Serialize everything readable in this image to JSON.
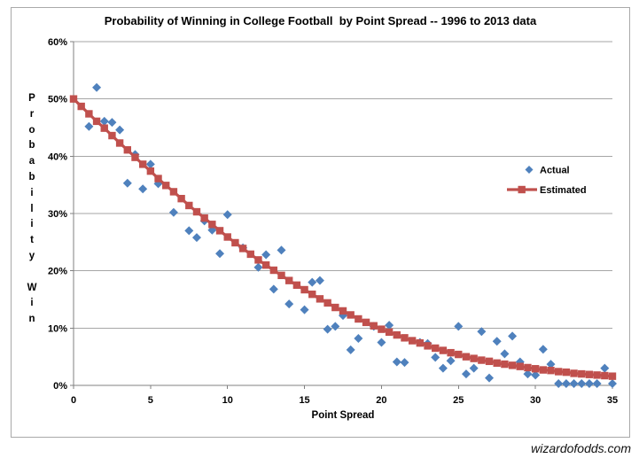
{
  "watermark": "wizardofodds.com",
  "styles": {
    "background": "#FFFFFF",
    "border_color": "#A9A9A9",
    "grid_color": "#A6A6A6",
    "axis_color": "#808080",
    "text_color": "#000000",
    "actual_color": "#4F81BD",
    "estimated_color": "#C0504D"
  },
  "chart_data": {
    "type": "scatter",
    "title": "Probability of Winning in College Football  by Point Spread -- 1996 to 2013 data",
    "xlabel": "Point Spread",
    "ylabel": "Probability Win",
    "xlim": [
      0,
      35
    ],
    "ylim_percent": [
      0,
      60
    ],
    "grid": true,
    "legend_position": "middle-right",
    "x_ticks": [
      {
        "value": 0,
        "label": "0"
      },
      {
        "value": 5,
        "label": "5"
      },
      {
        "value": 10,
        "label": "10"
      },
      {
        "value": 15,
        "label": "15"
      },
      {
        "value": 20,
        "label": "20"
      },
      {
        "value": 25,
        "label": "25"
      },
      {
        "value": 30,
        "label": "30"
      },
      {
        "value": 35,
        "label": "35"
      }
    ],
    "y_ticks": [
      {
        "value": 0,
        "label": "0%"
      },
      {
        "value": 10,
        "label": "10%"
      },
      {
        "value": 20,
        "label": "20%"
      },
      {
        "value": 30,
        "label": "30%"
      },
      {
        "value": 40,
        "label": "40%"
      },
      {
        "value": 50,
        "label": "50%"
      },
      {
        "value": 60,
        "label": "60%"
      }
    ],
    "series": [
      {
        "name": "Actual",
        "marker": "diamond",
        "color": "#4F81BD",
        "points": [
          [
            1,
            45.2
          ],
          [
            1.5,
            52
          ],
          [
            2,
            46.1
          ],
          [
            2.5,
            45.9
          ],
          [
            3,
            44.6
          ],
          [
            3.5,
            35.3
          ],
          [
            4,
            40.3
          ],
          [
            4.5,
            34.3
          ],
          [
            5,
            38.6
          ],
          [
            5.5,
            35.2
          ],
          [
            6.5,
            30.2
          ],
          [
            7.5,
            27
          ],
          [
            8,
            25.8
          ],
          [
            8.5,
            28.7
          ],
          [
            9,
            27.1
          ],
          [
            9.5,
            23
          ],
          [
            10,
            29.8
          ],
          [
            11,
            24
          ],
          [
            12,
            20.6
          ],
          [
            12.5,
            22.8
          ],
          [
            13,
            16.8
          ],
          [
            13.5,
            23.6
          ],
          [
            14,
            14.2
          ],
          [
            15,
            13.2
          ],
          [
            15.5,
            18
          ],
          [
            16,
            18.3
          ],
          [
            16.5,
            9.8
          ],
          [
            17,
            10.3
          ],
          [
            17.5,
            12.2
          ],
          [
            18,
            6.2
          ],
          [
            18.5,
            8.2
          ],
          [
            19.5,
            10.3
          ],
          [
            20,
            7.5
          ],
          [
            20.5,
            10.5
          ],
          [
            21,
            4.1
          ],
          [
            21.5,
            4
          ],
          [
            22.5,
            7.5
          ],
          [
            23,
            7.3
          ],
          [
            23.5,
            4.9
          ],
          [
            24,
            3
          ],
          [
            24.5,
            4.3
          ],
          [
            25,
            10.3
          ],
          [
            25.5,
            2
          ],
          [
            26,
            3
          ],
          [
            26.5,
            9.4
          ],
          [
            27,
            1.3
          ],
          [
            27.5,
            7.7
          ],
          [
            28,
            5.5
          ],
          [
            28.5,
            8.6
          ],
          [
            29,
            4.1
          ],
          [
            29.5,
            2
          ],
          [
            30,
            1.8
          ],
          [
            30.5,
            6.3
          ],
          [
            31,
            3.7
          ],
          [
            31.5,
            0.3
          ],
          [
            32,
            0.3
          ],
          [
            32.5,
            0.3
          ],
          [
            33,
            0.3
          ],
          [
            33.5,
            0.3
          ],
          [
            34,
            0.3
          ],
          [
            34.5,
            3
          ],
          [
            35,
            0.3
          ]
        ]
      },
      {
        "name": "Estimated",
        "marker": "square-line",
        "color": "#C0504D",
        "points": [
          [
            0,
            50
          ],
          [
            0.5,
            48.7
          ],
          [
            1,
            47.4
          ],
          [
            1.5,
            46.1
          ],
          [
            2,
            44.9
          ],
          [
            2.5,
            43.6
          ],
          [
            3,
            42.3
          ],
          [
            3.5,
            41.1
          ],
          [
            4,
            39.8
          ],
          [
            4.5,
            38.6
          ],
          [
            5,
            37.4
          ],
          [
            5.5,
            36.1
          ],
          [
            6,
            34.9
          ],
          [
            6.5,
            33.8
          ],
          [
            7,
            32.6
          ],
          [
            7.5,
            31.4
          ],
          [
            8,
            30.3
          ],
          [
            8.5,
            29.2
          ],
          [
            9,
            28.1
          ],
          [
            9.5,
            27
          ],
          [
            10,
            25.9
          ],
          [
            10.5,
            24.9
          ],
          [
            11,
            23.9
          ],
          [
            11.5,
            22.9
          ],
          [
            12,
            21.9
          ],
          [
            12.5,
            21
          ],
          [
            13,
            20.1
          ],
          [
            13.5,
            19.2
          ],
          [
            14,
            18.3
          ],
          [
            14.5,
            17.5
          ],
          [
            15,
            16.7
          ],
          [
            15.5,
            15.9
          ],
          [
            16,
            15.1
          ],
          [
            16.5,
            14.4
          ],
          [
            17,
            13.6
          ],
          [
            17.5,
            13
          ],
          [
            18,
            12.3
          ],
          [
            18.5,
            11.6
          ],
          [
            19,
            11
          ],
          [
            19.5,
            10.4
          ],
          [
            20,
            9.8
          ],
          [
            20.5,
            9.3
          ],
          [
            21,
            8.8
          ],
          [
            21.5,
            8.3
          ],
          [
            22,
            7.8
          ],
          [
            22.5,
            7.4
          ],
          [
            23,
            6.9
          ],
          [
            23.5,
            6.5
          ],
          [
            24,
            6.1
          ],
          [
            24.5,
            5.7
          ],
          [
            25,
            5.4
          ],
          [
            25.5,
            5
          ],
          [
            26,
            4.7
          ],
          [
            26.5,
            4.4
          ],
          [
            27,
            4.2
          ],
          [
            27.5,
            3.9
          ],
          [
            28,
            3.7
          ],
          [
            28.5,
            3.5
          ],
          [
            29,
            3.3
          ],
          [
            29.5,
            3.1
          ],
          [
            30,
            2.9
          ],
          [
            30.5,
            2.7
          ],
          [
            31,
            2.6
          ],
          [
            31.5,
            2.4
          ],
          [
            32,
            2.3
          ],
          [
            32.5,
            2.1
          ],
          [
            33,
            2
          ],
          [
            33.5,
            1.9
          ],
          [
            34,
            1.8
          ],
          [
            34.5,
            1.7
          ],
          [
            35,
            1.6
          ]
        ]
      }
    ]
  }
}
